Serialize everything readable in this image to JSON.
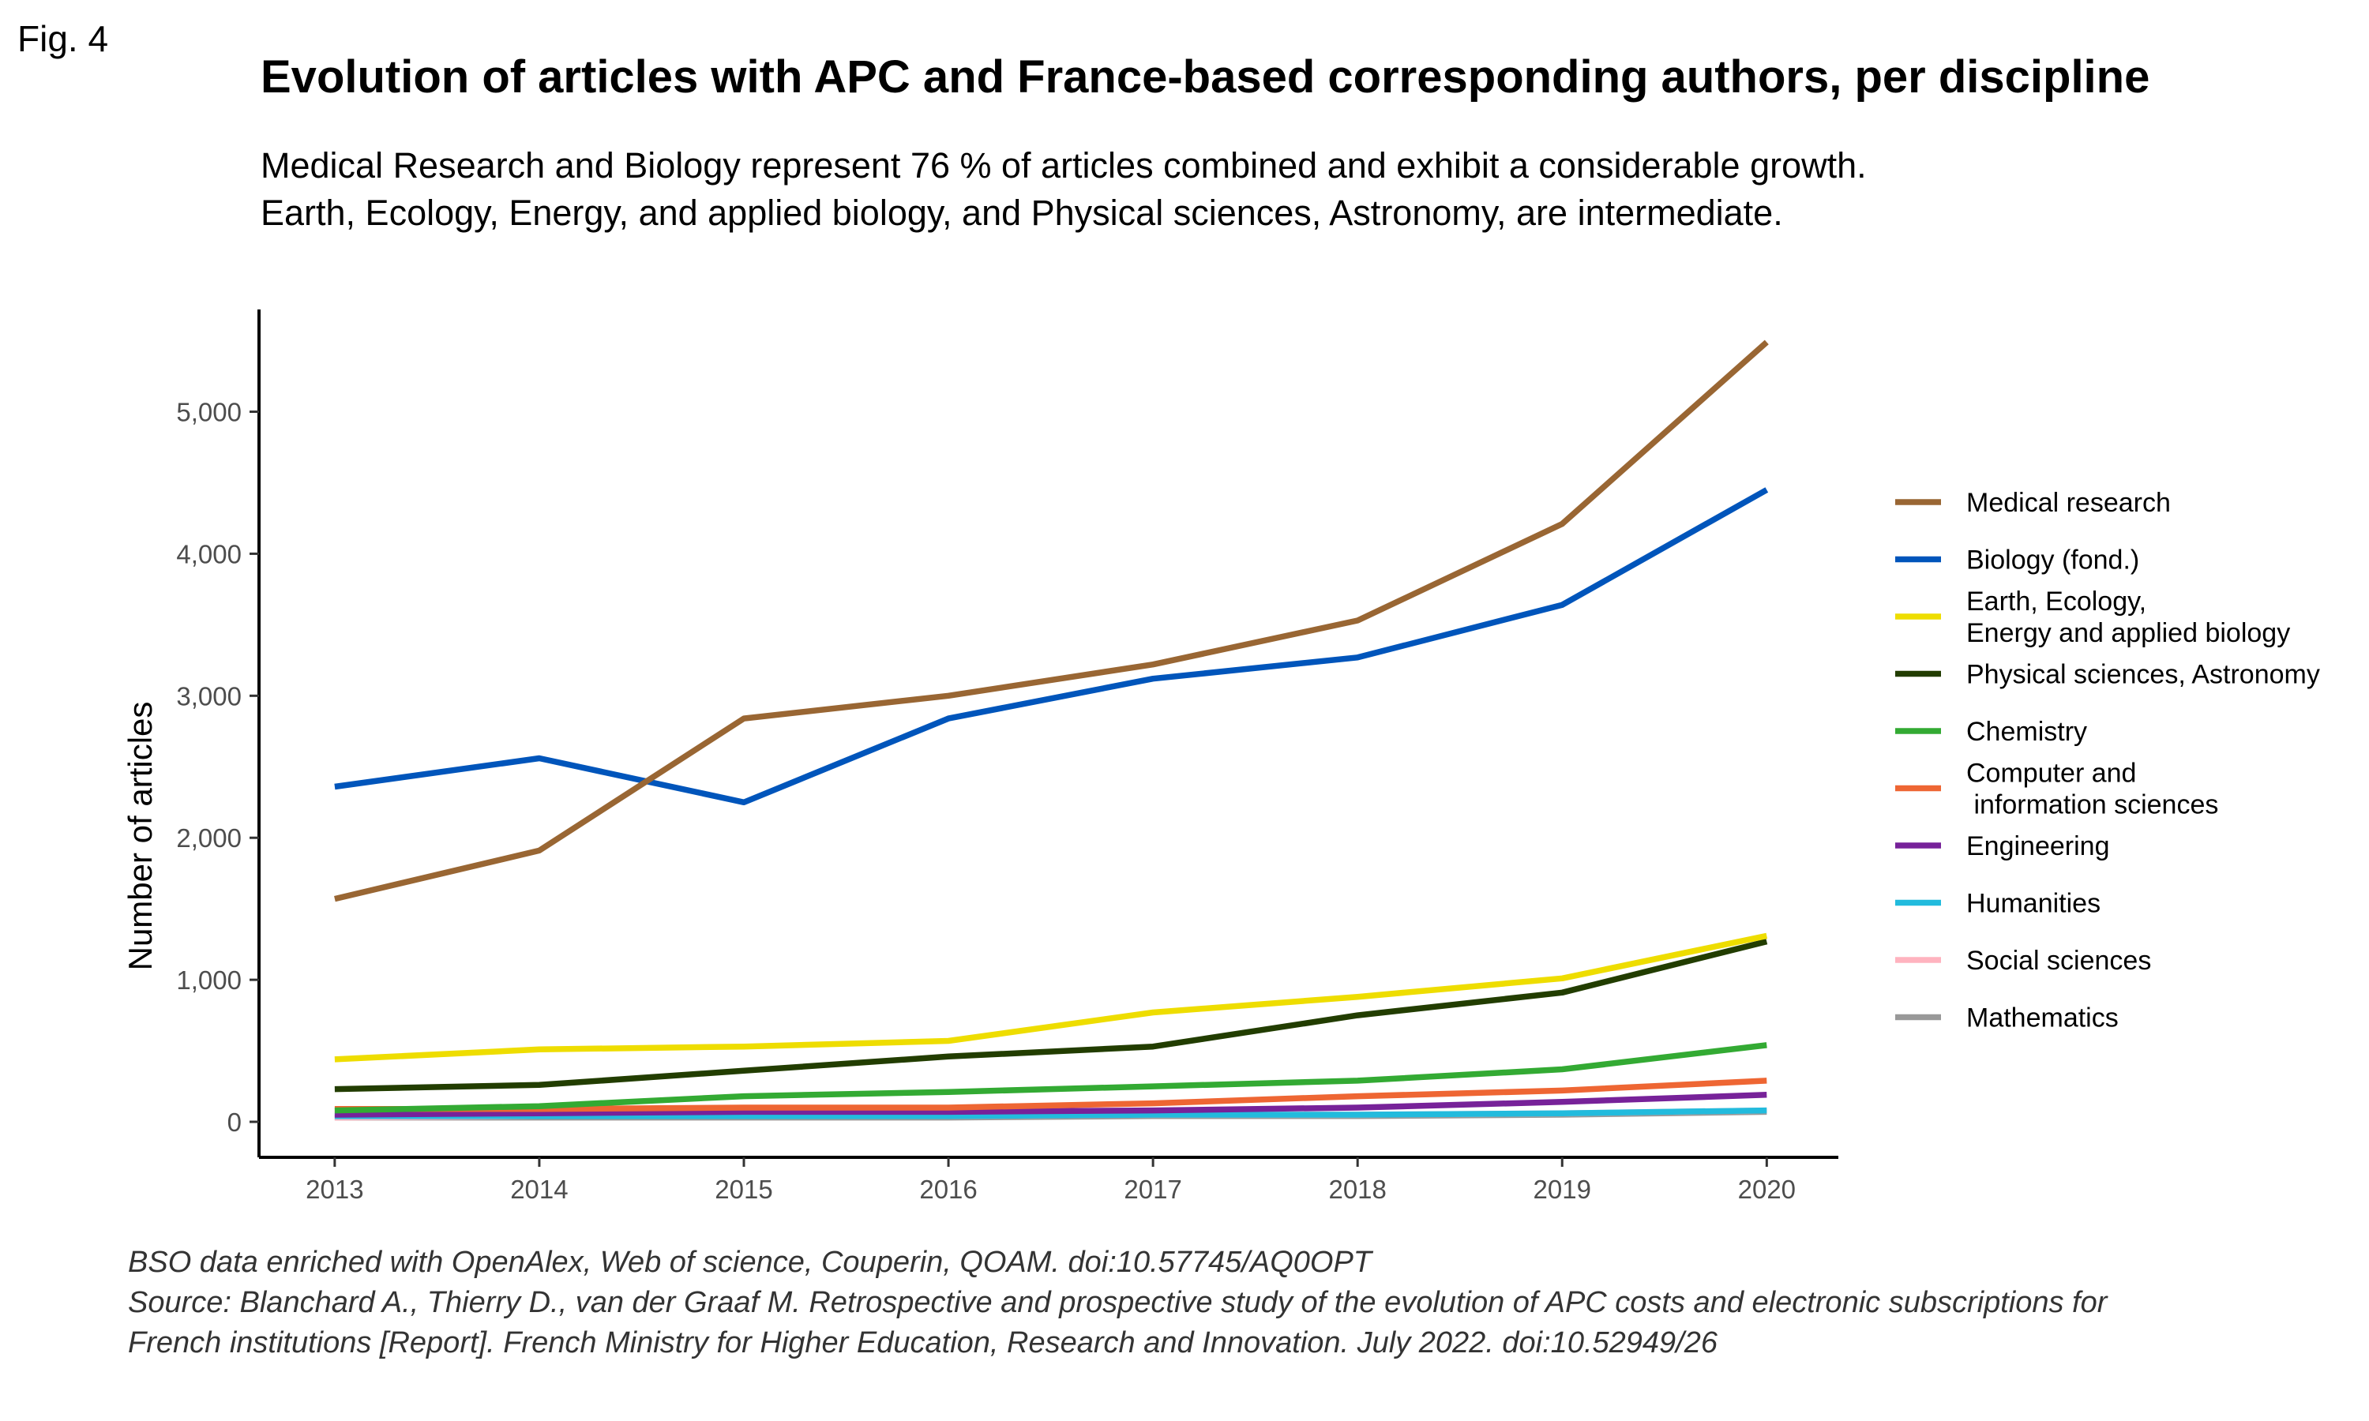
{
  "figure_label": "Fig. 4",
  "caption": {
    "line1": "BSO data enriched with OpenAlex, Web of science, Couperin, QOAM. doi:10.57745/AQ0OPT",
    "line2": "Source: Blanchard A., Thierry D., van der Graaf M. Retrospective and prospective study of the evolution of APC costs and electronic subscriptions for",
    "line3": "French institutions [Report]. French Ministry for Higher Education, Research and Innovation. July 2022. doi:10.52949/26"
  },
  "chart_data": {
    "type": "line",
    "title": "Evolution of articles with APC and France-based corresponding authors, per discipline",
    "subtitle": "Medical Research and Biology represent 76 % of articles combined and exhibit a considerable growth. Earth, Ecology, Energy, and applied biology, and Physical sciences, Astronomy, are intermediate.",
    "xlabel": "",
    "ylabel": "Number of articles",
    "x": [
      2013,
      2014,
      2015,
      2016,
      2017,
      2018,
      2019,
      2020
    ],
    "xlim": [
      2012.63,
      2020.35
    ],
    "ylim": [
      -250,
      5720
    ],
    "yticks": [
      0,
      1000,
      2000,
      3000,
      4000,
      5000
    ],
    "ytick_labels": [
      "0",
      "1,000",
      "2,000",
      "3,000",
      "4,000",
      "5,000"
    ],
    "grid": false,
    "legend_position": "right",
    "series": [
      {
        "name": "Medical research",
        "legend_lines": [
          "Medical research"
        ],
        "color": "#996633",
        "values": [
          1570,
          1910,
          2840,
          3000,
          3220,
          3530,
          4210,
          5490
        ]
      },
      {
        "name": "Biology (fond.)",
        "legend_lines": [
          "Biology (fond.)"
        ],
        "color": "#0055bb",
        "values": [
          2360,
          2560,
          2250,
          2840,
          3120,
          3270,
          3640,
          4450
        ]
      },
      {
        "name": "Earth, Ecology, Energy and applied biology",
        "legend_lines": [
          "Earth, Ecology,",
          "Energy and applied biology"
        ],
        "color": "#eedd00",
        "values": [
          440,
          510,
          530,
          570,
          770,
          880,
          1010,
          1310
        ]
      },
      {
        "name": "Physical sciences, Astronomy",
        "legend_lines": [
          "Physical sciences, Astronomy"
        ],
        "color": "#223d00",
        "values": [
          230,
          260,
          360,
          460,
          530,
          750,
          910,
          1270
        ]
      },
      {
        "name": "Chemistry",
        "legend_lines": [
          "Chemistry"
        ],
        "color": "#33aa33",
        "values": [
          80,
          110,
          180,
          210,
          250,
          290,
          370,
          540
        ]
      },
      {
        "name": "Computer and information sciences",
        "legend_lines": [
          "Computer and",
          " information sciences"
        ],
        "color": "#ee6633",
        "values": [
          90,
          90,
          100,
          100,
          130,
          180,
          220,
          290
        ]
      },
      {
        "name": "Engineering",
        "legend_lines": [
          "Engineering"
        ],
        "color": "#772299",
        "values": [
          50,
          60,
          70,
          70,
          80,
          100,
          140,
          190
        ]
      },
      {
        "name": "Humanities",
        "legend_lines": [
          "Humanities"
        ],
        "color": "#22bbdd",
        "values": [
          40,
          40,
          40,
          40,
          50,
          50,
          60,
          80
        ]
      },
      {
        "name": "Social sciences",
        "legend_lines": [
          "Social sciences"
        ],
        "color": "#ffb3bf",
        "values": [
          30,
          40,
          40,
          40,
          50,
          50,
          60,
          80
        ]
      },
      {
        "name": "Mathematics",
        "legend_lines": [
          "Mathematics"
        ],
        "color": "#999999",
        "values": [
          30,
          30,
          30,
          30,
          40,
          40,
          50,
          70
        ]
      }
    ]
  }
}
